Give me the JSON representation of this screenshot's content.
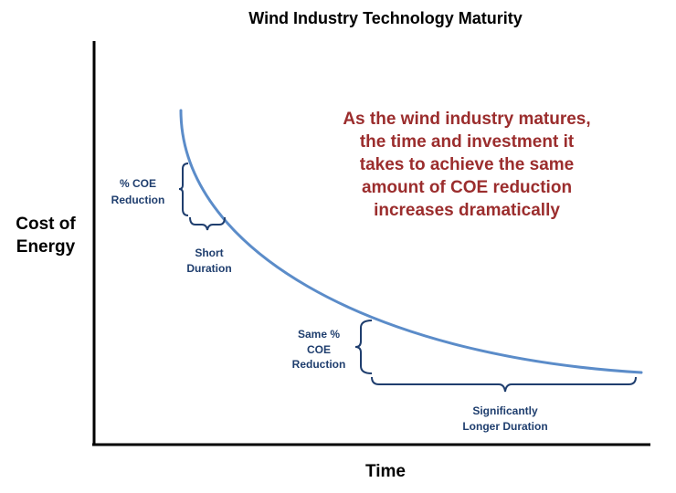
{
  "title": "Wind Industry Technology Maturity",
  "axes": {
    "y_label_lines": [
      "Cost of",
      "Energy"
    ],
    "x_label": "Time"
  },
  "headline_lines": [
    "As the wind industry matures,",
    "the time and investment it",
    "takes to achieve the same",
    "amount of COE reduction",
    "increases dramatically"
  ],
  "annotations": {
    "early_reduction_lines": [
      "% COE",
      "Reduction"
    ],
    "early_duration_lines": [
      "Short",
      "Duration"
    ],
    "late_reduction_lines": [
      "Same %",
      "COE",
      "Reduction"
    ],
    "late_duration_lines": [
      "Significantly",
      "Longer Duration"
    ]
  },
  "colors": {
    "curve": "#5b8cc9",
    "headline": "#9b2d2d",
    "annotation": "#1f3e6e",
    "axis": "#000000"
  }
}
